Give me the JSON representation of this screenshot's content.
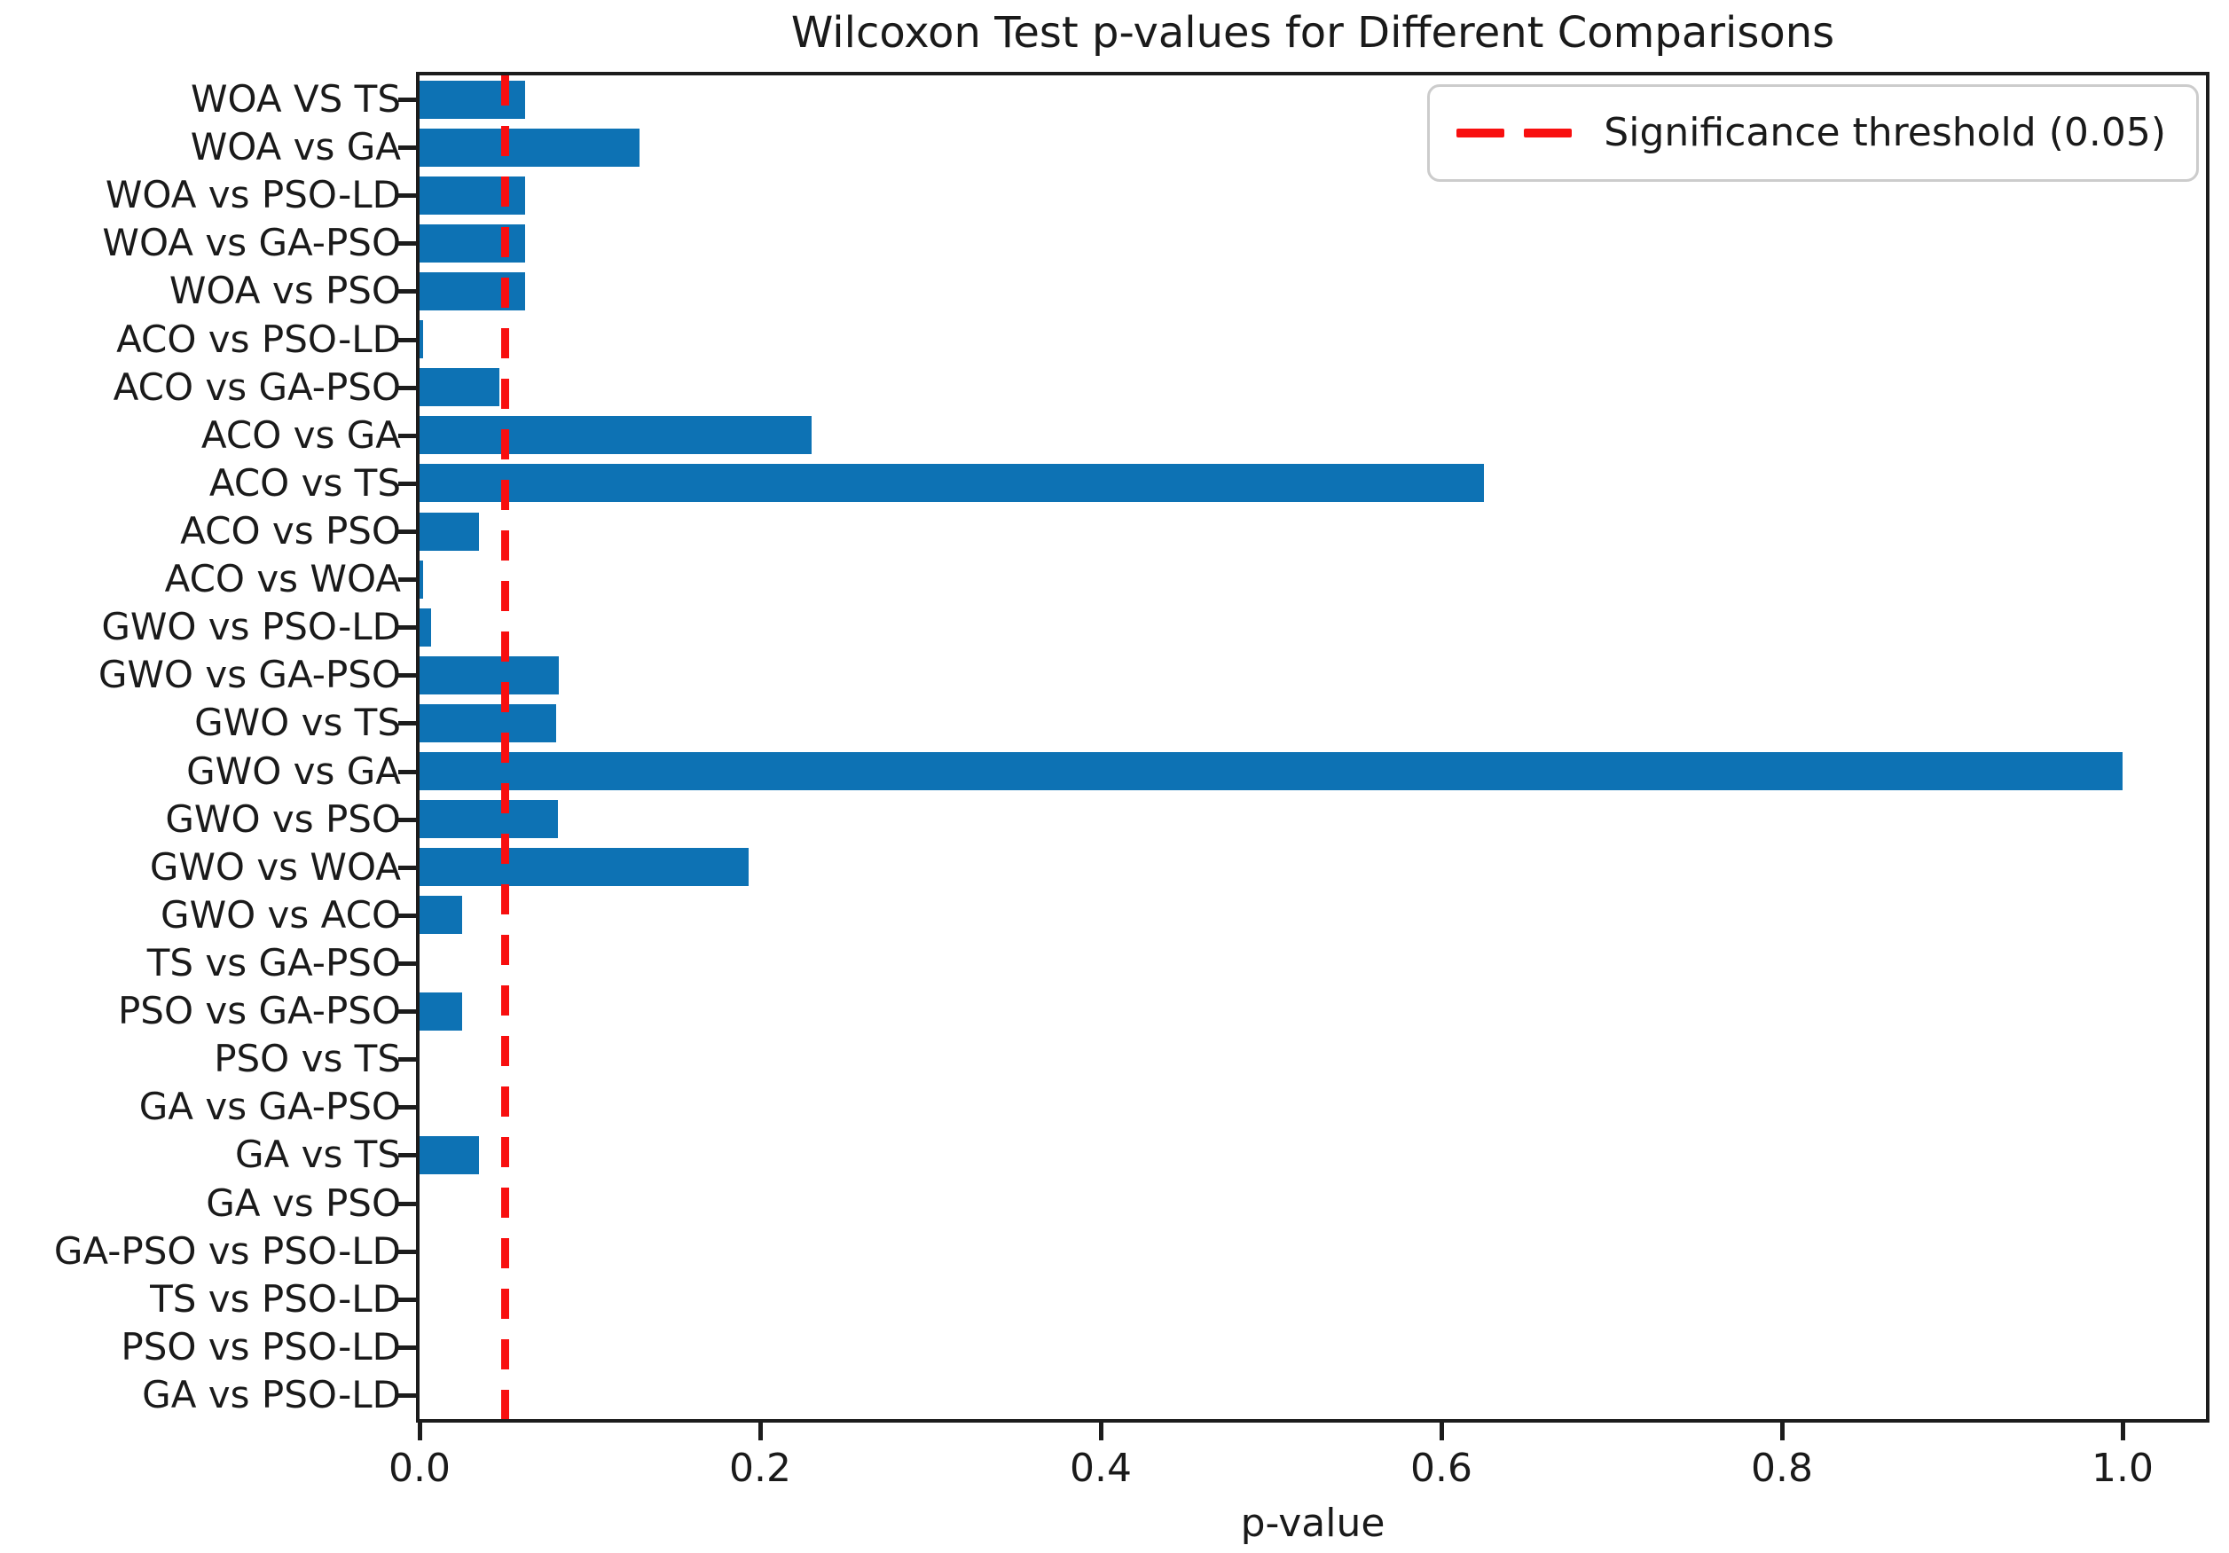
{
  "legend": {
    "label": "Significance threshold (0.05)"
  },
  "chart_data": {
    "type": "bar",
    "orientation": "horizontal",
    "title": "Wilcoxon Test p-values for Different Comparisons",
    "xlabel": "p-value",
    "ylabel": "",
    "categories": [
      "WOA VS TS",
      "WOA vs GA",
      "WOA vs PSO-LD",
      "WOA vs GA-PSO",
      "WOA vs PSO",
      "ACO vs PSO-LD",
      "ACO vs GA-PSO",
      "ACO vs GA",
      "ACO vs TS",
      "ACO vs PSO",
      "ACO vs WOA",
      "GWO vs PSO-LD",
      "GWO vs GA-PSO",
      "GWO vs TS",
      "GWO vs GA",
      "GWO vs PSO",
      "GWO vs WOA",
      "GWO vs ACO",
      "TS vs GA-PSO",
      "PSO vs GA-PSO",
      "PSO vs TS",
      "GA vs GA-PSO",
      "GA vs TS",
      "GA vs PSO",
      "GA-PSO vs PSO-LD",
      "TS vs PSO-LD",
      "PSO vs PSO-LD",
      "GA vs PSO-LD"
    ],
    "values": [
      0.062,
      0.129,
      0.062,
      0.062,
      0.062,
      0.002,
      0.047,
      0.23,
      0.625,
      0.035,
      0.002,
      0.007,
      0.082,
      0.08,
      1.0,
      0.081,
      0.193,
      0.025,
      0.0,
      0.025,
      0.0,
      0.0,
      0.035,
      0.0,
      0.0,
      0.0,
      0.0,
      0.0
    ],
    "threshold": {
      "value": 0.05,
      "label": "Significance threshold (0.05)"
    },
    "x_ticks": {
      "values": [
        0.0,
        0.2,
        0.4,
        0.6,
        0.8,
        1.0
      ],
      "labels": [
        "0.0",
        "0.2",
        "0.4",
        "0.6",
        "0.8",
        "1.0"
      ]
    },
    "xlim": [
      0,
      1.049
    ],
    "grid": false,
    "legend_position": "upper right",
    "bar_color": "#0d72b4",
    "threshold_color": "#f80f0f"
  }
}
